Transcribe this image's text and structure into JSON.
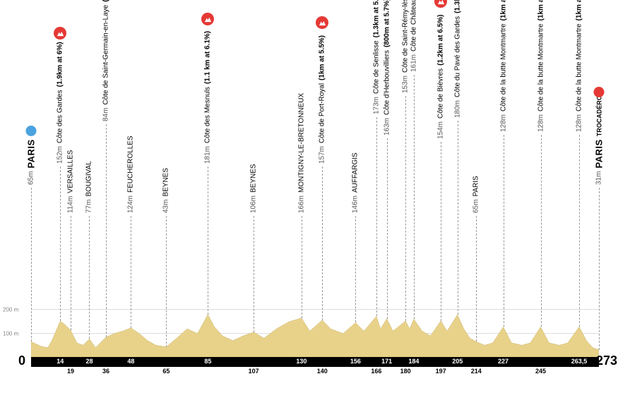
{
  "stage": {
    "start_label": "PARIS",
    "end_label": "PARIS",
    "end_sublabel": "TROCADÉRO",
    "start_alt": "65m",
    "end_alt": "31m",
    "total_km": 273,
    "km_start": "0",
    "km_end": "273"
  },
  "axis": {
    "y_ticks": [
      {
        "value": 100,
        "label": "100 m"
      },
      {
        "value": 200,
        "label": "200 m"
      }
    ],
    "y_max": 300
  },
  "km_ticks": [
    14,
    19,
    28,
    36,
    48,
    65,
    85,
    107,
    130,
    140,
    156,
    166,
    171,
    180,
    184,
    197,
    205,
    214,
    227,
    245,
    263.5
  ],
  "points": [
    {
      "km": 0,
      "alt": 65,
      "type": "start",
      "name": "PARIS",
      "bold": true,
      "marker_y_offset": 0
    },
    {
      "km": 14,
      "alt": 152,
      "type": "climb",
      "name": "Côte des Gardes",
      "detail": "(1.9km at 6%)",
      "marker_y_offset": 60
    },
    {
      "km": 19,
      "alt": 114,
      "type": "pass",
      "name": "VERSAILLES"
    },
    {
      "km": 28,
      "alt": 77,
      "type": "pass",
      "name": "BOUGIVAL"
    },
    {
      "km": 36,
      "alt": 84,
      "type": "climb",
      "name": "Côte de Saint-Germain-en-Laye",
      "detail": "(1km at 5.5%)",
      "marker_y_offset": 120
    },
    {
      "km": 48,
      "alt": 124,
      "type": "pass",
      "name": "FEUCHEROLLES"
    },
    {
      "km": 65,
      "alt": 43,
      "type": "pass",
      "name": "BEYNES"
    },
    {
      "km": 85,
      "alt": 181,
      "type": "climb",
      "name": "Côte des Mesnuls",
      "detail": "(1.1 km at 6.1%)",
      "marker_y_offset": 60
    },
    {
      "km": 107,
      "alt": 106,
      "type": "pass",
      "name": "BEYNES"
    },
    {
      "km": 130,
      "alt": 166,
      "type": "pass",
      "name": "MONTIGNY-LE-BRETONNEUX"
    },
    {
      "km": 140,
      "alt": 157,
      "type": "climb",
      "name": "Côte de Port-Royal",
      "detail": "(1km at 5.5%)",
      "marker_y_offset": 60
    },
    {
      "km": 156,
      "alt": 146,
      "type": "pass",
      "name": "AUFFARGIS"
    },
    {
      "km": 166,
      "alt": 173,
      "type": "climb",
      "name": "Côte de Senlisse",
      "detail": "(1.3km at 5.3%)",
      "marker_y_offset": 130
    },
    {
      "km": 171,
      "alt": 163,
      "type": "climb",
      "name": "Côte d'Herbouvilliers",
      "detail": "(800m at 5.7%)",
      "marker_y_offset": 100
    },
    {
      "km": 180,
      "alt": 153,
      "type": "climb",
      "name": "Côte de Saint-Rémy-lès-Chevreuse",
      "detail": "(1.3km at 6.3%)",
      "marker_y_offset": 160
    },
    {
      "km": 184,
      "alt": 161,
      "type": "climb",
      "name": "Côte de Châteaufort",
      "detail": "(900m at 5.7%)",
      "marker_y_offset": 190
    },
    {
      "km": 197,
      "alt": 154,
      "type": "climb",
      "name": "Côte de Bièvres",
      "detail": "(1.2km at 6.5%)",
      "marker_y_offset": 95
    },
    {
      "km": 205,
      "alt": 180,
      "type": "climb",
      "name": "Côte du Pavé des Gardes",
      "detail": "(1.3km at 6.5%)",
      "marker_y_offset": 125
    },
    {
      "km": 214,
      "alt": 65,
      "type": "pass",
      "name": "PARIS"
    },
    {
      "km": 227,
      "alt": 128,
      "type": "climb",
      "name": "Côte de la butte Montmartre",
      "detail": "(1km at 6.5%)",
      "marker_y_offset": 105
    },
    {
      "km": 245,
      "alt": 128,
      "type": "climb",
      "name": "Côte de la butte Montmartre",
      "detail": "(1km at 6.5%)",
      "marker_y_offset": 105
    },
    {
      "km": 263.5,
      "alt": 128,
      "type": "climb",
      "name": "Côte de la butte Montmartre",
      "detail": "(1km at 6.5%)",
      "marker_y_offset": 105
    },
    {
      "km": 273,
      "alt": 31,
      "type": "finish",
      "name": "PARIS",
      "sublabel": "TROCADÉRO",
      "bold": true,
      "marker_y_offset": 0
    }
  ],
  "elevation_profile": [
    {
      "km": 0,
      "alt": 65
    },
    {
      "km": 5,
      "alt": 45
    },
    {
      "km": 8,
      "alt": 40
    },
    {
      "km": 10,
      "alt": 70
    },
    {
      "km": 14,
      "alt": 152
    },
    {
      "km": 16,
      "alt": 140
    },
    {
      "km": 19,
      "alt": 114
    },
    {
      "km": 22,
      "alt": 60
    },
    {
      "km": 25,
      "alt": 50
    },
    {
      "km": 28,
      "alt": 77
    },
    {
      "km": 31,
      "alt": 40
    },
    {
      "km": 36,
      "alt": 84
    },
    {
      "km": 40,
      "alt": 100
    },
    {
      "km": 44,
      "alt": 110
    },
    {
      "km": 48,
      "alt": 124
    },
    {
      "km": 52,
      "alt": 100
    },
    {
      "km": 56,
      "alt": 70
    },
    {
      "km": 60,
      "alt": 50
    },
    {
      "km": 65,
      "alt": 43
    },
    {
      "km": 70,
      "alt": 80
    },
    {
      "km": 75,
      "alt": 120
    },
    {
      "km": 80,
      "alt": 100
    },
    {
      "km": 85,
      "alt": 181
    },
    {
      "km": 88,
      "alt": 130
    },
    {
      "km": 92,
      "alt": 90
    },
    {
      "km": 97,
      "alt": 70
    },
    {
      "km": 102,
      "alt": 90
    },
    {
      "km": 107,
      "alt": 106
    },
    {
      "km": 112,
      "alt": 80
    },
    {
      "km": 118,
      "alt": 120
    },
    {
      "km": 124,
      "alt": 150
    },
    {
      "km": 130,
      "alt": 166
    },
    {
      "km": 134,
      "alt": 110
    },
    {
      "km": 140,
      "alt": 157
    },
    {
      "km": 144,
      "alt": 120
    },
    {
      "km": 150,
      "alt": 100
    },
    {
      "km": 156,
      "alt": 146
    },
    {
      "km": 160,
      "alt": 110
    },
    {
      "km": 166,
      "alt": 173
    },
    {
      "km": 168,
      "alt": 120
    },
    {
      "km": 171,
      "alt": 163
    },
    {
      "km": 174,
      "alt": 110
    },
    {
      "km": 180,
      "alt": 153
    },
    {
      "km": 182,
      "alt": 120
    },
    {
      "km": 184,
      "alt": 161
    },
    {
      "km": 188,
      "alt": 110
    },
    {
      "km": 192,
      "alt": 90
    },
    {
      "km": 197,
      "alt": 154
    },
    {
      "km": 200,
      "alt": 110
    },
    {
      "km": 205,
      "alt": 180
    },
    {
      "km": 208,
      "alt": 120
    },
    {
      "km": 211,
      "alt": 80
    },
    {
      "km": 214,
      "alt": 65
    },
    {
      "km": 218,
      "alt": 50
    },
    {
      "km": 222,
      "alt": 60
    },
    {
      "km": 227,
      "alt": 128
    },
    {
      "km": 231,
      "alt": 60
    },
    {
      "km": 236,
      "alt": 50
    },
    {
      "km": 240,
      "alt": 60
    },
    {
      "km": 245,
      "alt": 128
    },
    {
      "km": 249,
      "alt": 60
    },
    {
      "km": 254,
      "alt": 50
    },
    {
      "km": 258,
      "alt": 60
    },
    {
      "km": 263.5,
      "alt": 128
    },
    {
      "km": 267,
      "alt": 70
    },
    {
      "km": 270,
      "alt": 40
    },
    {
      "km": 273,
      "alt": 31
    }
  ],
  "colors": {
    "profile_fill": "#e8d28a",
    "profile_stroke": "#c9b36a",
    "climb_marker": "#e53935",
    "start_marker": "#4aa3df",
    "finish_marker": "#e53935",
    "bar": "#000000",
    "grid": "#dddddd",
    "dash": "#999999"
  }
}
